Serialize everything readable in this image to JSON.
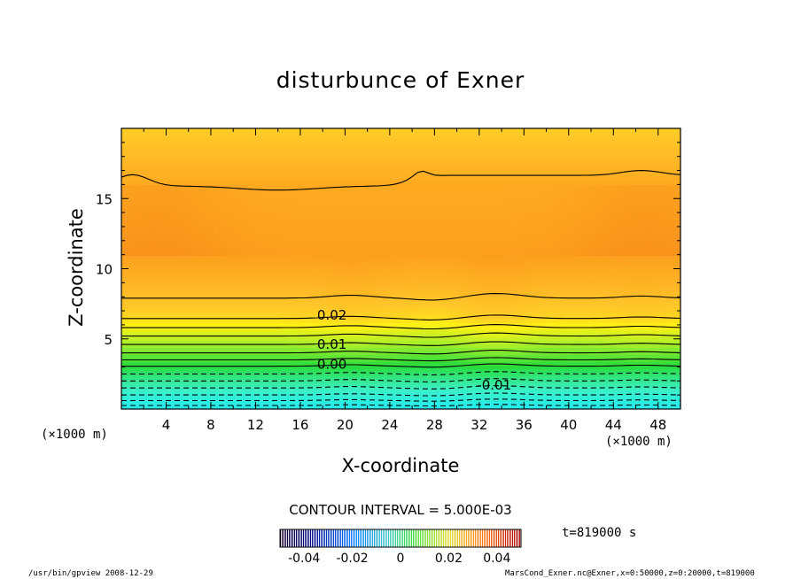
{
  "chart_data": {
    "type": "contour",
    "title": "disturbunce of Exner",
    "xlabel": "X-coordinate",
    "ylabel": "Z-coordinate",
    "x_unit_left": "(×1000 m)",
    "x_unit_right": "(×1000 m)",
    "xlim": [
      0,
      50
    ],
    "ylim": [
      0,
      20
    ],
    "xticks": [
      4,
      8,
      12,
      16,
      20,
      24,
      28,
      32,
      36,
      40,
      44,
      48
    ],
    "yticks": [
      5,
      10,
      15
    ],
    "contour_interval_text": "CONTOUR INTERVAL = 5.000E-03",
    "contour_interval": 0.005,
    "contour_labels": [
      {
        "text": "0.02",
        "x": 17.5,
        "z": 6.7
      },
      {
        "text": "0.01",
        "x": 17.5,
        "z": 4.6
      },
      {
        "text": "0.00",
        "x": 17.5,
        "z": 3.2
      },
      {
        "text": "-0.01",
        "x": 31.8,
        "z": 1.7
      }
    ],
    "colorbar": {
      "min": -0.05,
      "max": 0.05,
      "ticks": [
        "-0.04",
        "-0.02",
        "0",
        "0.02",
        "0.04"
      ],
      "tick_values": [
        -0.04,
        -0.02,
        0,
        0.02,
        0.04
      ]
    },
    "time_label": "t=819000 s",
    "grid": false
  },
  "footer": {
    "left": "/usr/bin/gpview  2008-12-29",
    "right": "MarsCond_Exner.nc@Exner,x=0:50000,z=0:20000,t=819000"
  }
}
